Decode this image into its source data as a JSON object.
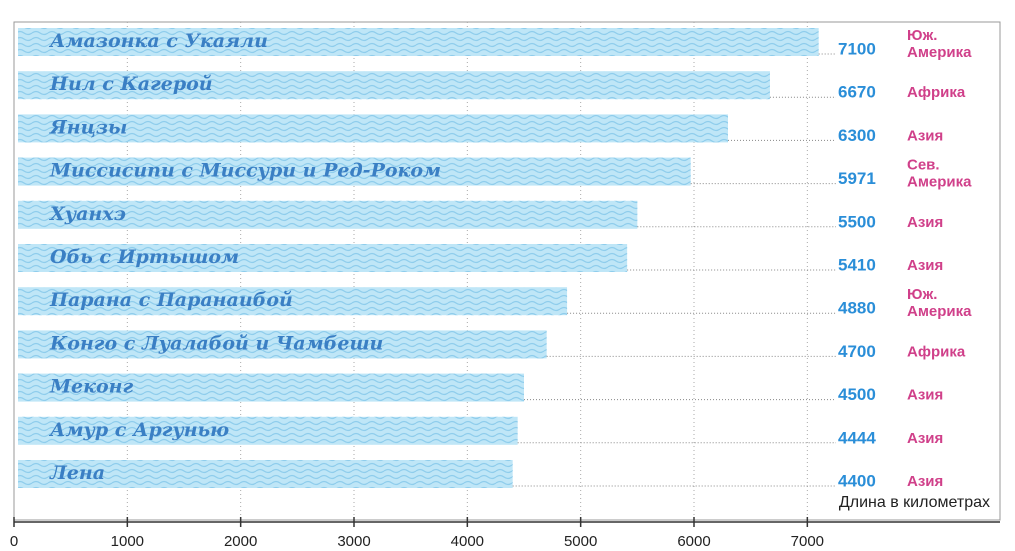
{
  "chart_data": {
    "type": "bar",
    "orientation": "horizontal",
    "categories": [
      "Амазонка с Укаяли",
      "Нил с Кагерой",
      "Янцзы",
      "Миссисипи с Миссури и Ред-Роком",
      "Хуанхэ",
      "Обь с Иртышом",
      "Парана с Паранаибой",
      "Конго с Луалабой и Чамбеши",
      "Меконг",
      "Амур с Аргунью",
      "Лена"
    ],
    "values": [
      7100,
      6670,
      6300,
      5971,
      5500,
      5410,
      4880,
      4700,
      4500,
      4444,
      4400
    ],
    "continents": [
      [
        "Юж.",
        "Америка"
      ],
      [
        "Африка"
      ],
      [
        "Азия"
      ],
      [
        "Сев.",
        "Америка"
      ],
      [
        "Азия"
      ],
      [
        "Азия"
      ],
      [
        "Юж.",
        "Америка"
      ],
      [
        "Африка"
      ],
      [
        "Азия"
      ],
      [
        "Азия"
      ],
      [
        "Азия"
      ]
    ],
    "color": "#bfe6f7",
    "xlabel": "Длина в километрах",
    "xlim": [
      0,
      8700
    ],
    "xticks": [
      0,
      1000,
      2000,
      3000,
      4000,
      5000,
      6000,
      7000
    ],
    "grid": true
  }
}
